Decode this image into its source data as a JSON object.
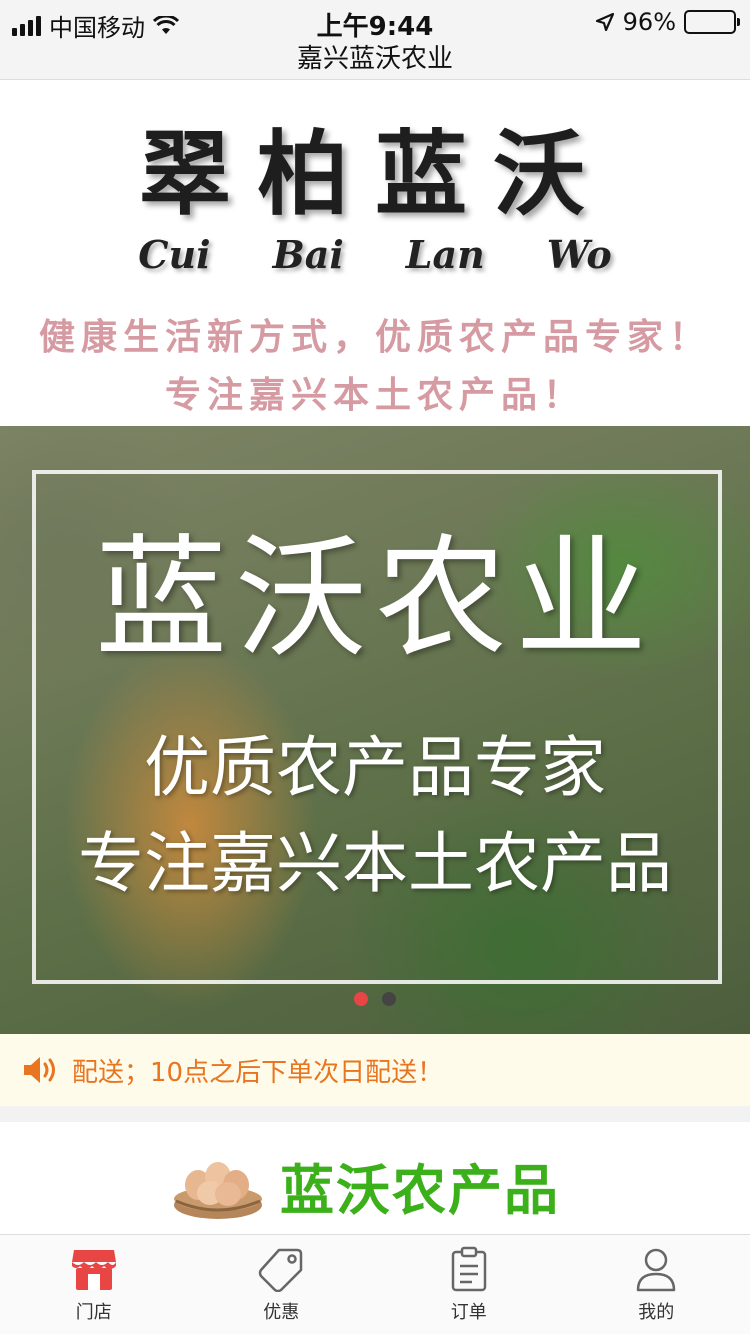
{
  "status_bar": {
    "carrier": "中国移动",
    "time": "上午9:44",
    "battery": "96%",
    "battery_level": 0.96
  },
  "nav": {
    "title": "嘉兴蓝沃农业"
  },
  "brand": {
    "logo_cn": "翠柏蓝沃",
    "logo_en": [
      "Cui",
      "Bai",
      "Lan",
      "Wo"
    ],
    "slogan_line1": "健康生活新方式，优质农产品专家！",
    "slogan_line2": "专注嘉兴本土农产品！"
  },
  "banner": {
    "title": "蓝沃农业",
    "line1": "优质农产品专家",
    "line2": "专注嘉兴本土农产品",
    "slide_count": 2,
    "active_slide": 1
  },
  "notice": {
    "text": "配送；10点之后下单次日配送！"
  },
  "section": {
    "title": "蓝沃农产品"
  },
  "tabbar": {
    "tabs": [
      {
        "label": "门店",
        "icon": "store-icon"
      },
      {
        "label": "优惠",
        "icon": "tag-icon"
      },
      {
        "label": "订单",
        "icon": "order-list-icon"
      },
      {
        "label": "我的",
        "icon": "user-icon"
      }
    ]
  },
  "colors": {
    "accent": "#e84545",
    "notice_text": "#e8751f",
    "section_title": "#3bb01a",
    "slogan": "#d59aa2"
  }
}
